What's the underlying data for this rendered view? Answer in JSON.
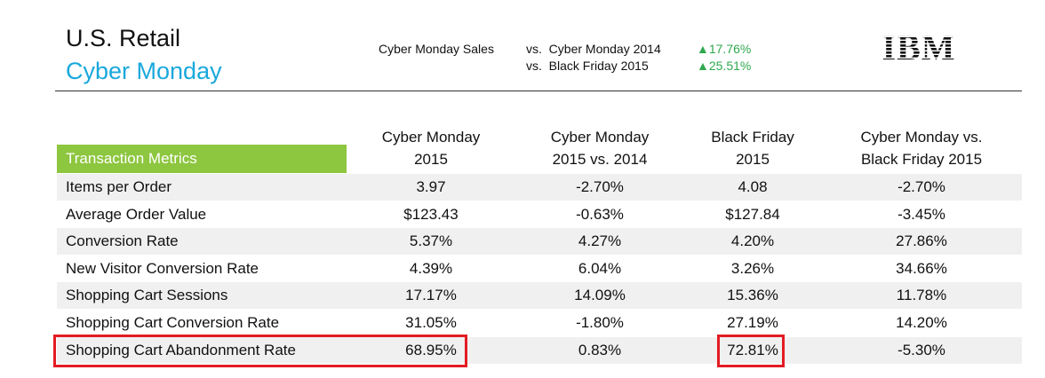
{
  "header": {
    "title_line1": "U.S. Retail",
    "title_line2": "Cyber Monday",
    "sales_label": "Cyber Monday Sales",
    "comparisons": [
      {
        "label": "vs.  Cyber Monday 2014",
        "change": "▲17.76%"
      },
      {
        "label": "vs.  Black Friday 2015",
        "change": "▲25.51%"
      }
    ],
    "logo_text": "IBM",
    "colors": {
      "accent_blue": "#1aa8dc",
      "positive_green": "#2fa84f",
      "header_green": "#8dc63f",
      "highlight_red": "#e31b23"
    }
  },
  "table": {
    "metric_header": "Transaction Metrics",
    "columns": [
      {
        "line1": "Cyber Monday",
        "line2": "2015"
      },
      {
        "line1": "Cyber Monday",
        "line2": "2015 vs. 2014"
      },
      {
        "line1": "Black Friday",
        "line2": "2015"
      },
      {
        "line1": "Cyber Monday vs.",
        "line2": "Black Friday 2015"
      }
    ],
    "rows": [
      {
        "metric": "Items per Order",
        "values": [
          "3.97",
          "-2.70%",
          "4.08",
          "-2.70%"
        ]
      },
      {
        "metric": "Average Order Value",
        "values": [
          "$123.43",
          "-0.63%",
          "$127.84",
          "-3.45%"
        ]
      },
      {
        "metric": "Conversion Rate",
        "values": [
          "5.37%",
          "4.27%",
          "4.20%",
          "27.86%"
        ]
      },
      {
        "metric": "New Visitor Conversion Rate",
        "values": [
          "4.39%",
          "6.04%",
          "3.26%",
          "34.66%"
        ]
      },
      {
        "metric": "Shopping Cart Sessions",
        "values": [
          "17.17%",
          "14.09%",
          "15.36%",
          "11.78%"
        ]
      },
      {
        "metric": "Shopping Cart Conversion Rate",
        "values": [
          "31.05%",
          "-1.80%",
          "27.19%",
          "14.20%"
        ]
      },
      {
        "metric": "Shopping Cart Abandonment Rate",
        "values": [
          "68.95%",
          "0.83%",
          "72.81%",
          "-5.30%"
        ]
      }
    ]
  }
}
